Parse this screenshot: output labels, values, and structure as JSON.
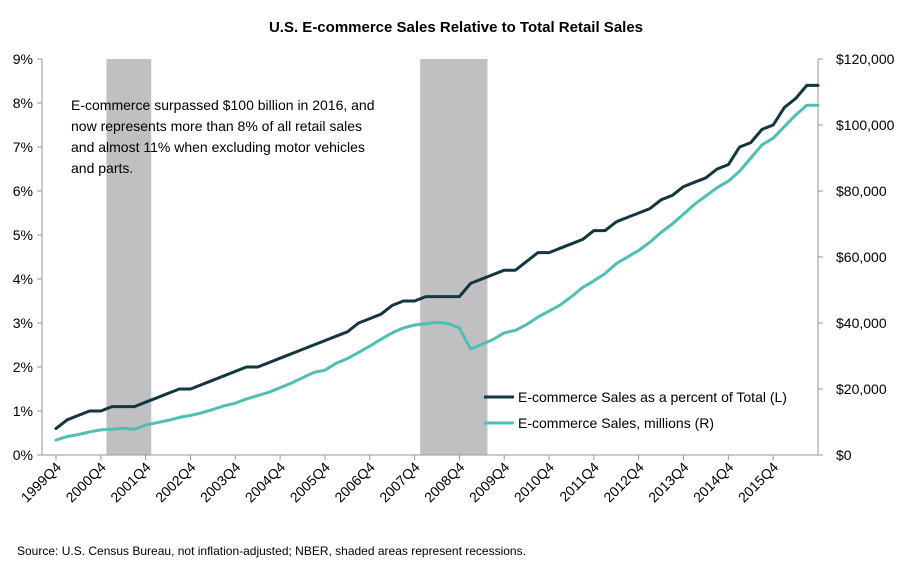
{
  "chart_data": {
    "type": "line",
    "title": "U.S. E-commerce Sales Relative to Total Retail Sales",
    "annotation": [
      "E-commerce surpassed $100 billion in 2016, and",
      "now represents more than 8% of all retail sales",
      "and almost 11% when excluding motor vehicles",
      "and parts."
    ],
    "source": "Source: U.S. Census Bureau, not inflation-adjusted; NBER, shaded areas represent recessions.",
    "x_tick_labels": [
      "1999Q4",
      "2000Q4",
      "2001Q4",
      "2002Q4",
      "2003Q4",
      "2004Q4",
      "2005Q4",
      "2006Q4",
      "2007Q4",
      "2008Q4",
      "2009Q4",
      "2010Q4",
      "2011Q4",
      "2012Q4",
      "2013Q4",
      "2014Q4",
      "2015Q4"
    ],
    "y_left_ticks": [
      "0%",
      "1%",
      "2%",
      "3%",
      "4%",
      "5%",
      "6%",
      "7%",
      "8%",
      "9%"
    ],
    "y_right_ticks": [
      "$0",
      "$20,000",
      "$40,000",
      "$60,000",
      "$80,000",
      "$100,000",
      "$120,000"
    ],
    "ylim_left": [
      0,
      9
    ],
    "ylim_right": [
      0,
      120000
    ],
    "grid": false,
    "legend_position": "bottom-right",
    "recessions": [
      {
        "start": "2001Q1",
        "end": "2001Q4"
      },
      {
        "start": "2008Q1",
        "end": "2009Q2"
      }
    ],
    "quarters": [
      "1999Q4",
      "2000Q1",
      "2000Q2",
      "2000Q3",
      "2000Q4",
      "2001Q1",
      "2001Q2",
      "2001Q3",
      "2001Q4",
      "2002Q1",
      "2002Q2",
      "2002Q3",
      "2002Q4",
      "2003Q1",
      "2003Q2",
      "2003Q3",
      "2003Q4",
      "2004Q1",
      "2004Q2",
      "2004Q3",
      "2004Q4",
      "2005Q1",
      "2005Q2",
      "2005Q3",
      "2005Q4",
      "2006Q1",
      "2006Q2",
      "2006Q3",
      "2006Q4",
      "2007Q1",
      "2007Q2",
      "2007Q3",
      "2007Q4",
      "2008Q1",
      "2008Q2",
      "2008Q3",
      "2008Q4",
      "2009Q1",
      "2009Q2",
      "2009Q3",
      "2009Q4",
      "2010Q1",
      "2010Q2",
      "2010Q3",
      "2010Q4",
      "2011Q1",
      "2011Q2",
      "2011Q3",
      "2011Q4",
      "2012Q1",
      "2012Q2",
      "2012Q3",
      "2012Q4",
      "2013Q1",
      "2013Q2",
      "2013Q3",
      "2013Q4",
      "2014Q1",
      "2014Q2",
      "2014Q3",
      "2014Q4",
      "2015Q1",
      "2015Q2",
      "2015Q3",
      "2015Q4",
      "2016Q1",
      "2016Q2",
      "2016Q3",
      "2016Q4"
    ],
    "series": [
      {
        "name": "E-commerce Sales as a percent of Total (L)",
        "axis": "left",
        "color": "#13363f",
        "values": [
          0.6,
          0.8,
          0.9,
          1.0,
          1.0,
          1.1,
          1.1,
          1.1,
          1.2,
          1.3,
          1.4,
          1.5,
          1.5,
          1.6,
          1.7,
          1.8,
          1.9,
          2.0,
          2.0,
          2.1,
          2.2,
          2.3,
          2.4,
          2.5,
          2.6,
          2.7,
          2.8,
          3.0,
          3.1,
          3.2,
          3.4,
          3.5,
          3.5,
          3.6,
          3.6,
          3.6,
          3.6,
          3.9,
          4.0,
          4.1,
          4.2,
          4.2,
          4.4,
          4.6,
          4.6,
          4.7,
          4.8,
          4.9,
          5.1,
          5.1,
          5.3,
          5.4,
          5.5,
          5.6,
          5.8,
          5.9,
          6.1,
          6.2,
          6.3,
          6.5,
          6.6,
          7.0,
          7.1,
          7.4,
          7.5,
          7.9,
          8.1,
          8.4,
          8.4
        ]
      },
      {
        "name": "E-commerce Sales, millions (R)",
        "axis": "right",
        "color": "#4fbfb4",
        "values": [
          4500,
          5600,
          6200,
          7000,
          7600,
          7800,
          8100,
          7800,
          9100,
          9800,
          10500,
          11400,
          12000,
          12800,
          13800,
          14900,
          15700,
          17000,
          18000,
          19000,
          20400,
          21800,
          23400,
          25000,
          25700,
          27800,
          29200,
          31100,
          33000,
          35100,
          37000,
          38500,
          39400,
          39800,
          40200,
          39800,
          38500,
          32100,
          33500,
          35000,
          37000,
          37800,
          39500,
          41800,
          43600,
          45500,
          48000,
          50800,
          52800,
          55000,
          58000,
          60000,
          62000,
          64500,
          67500,
          70000,
          73000,
          76000,
          78500,
          81000,
          83000,
          86000,
          90000,
          94000,
          96000,
          99500,
          103000,
          106000,
          106000
        ]
      }
    ]
  }
}
